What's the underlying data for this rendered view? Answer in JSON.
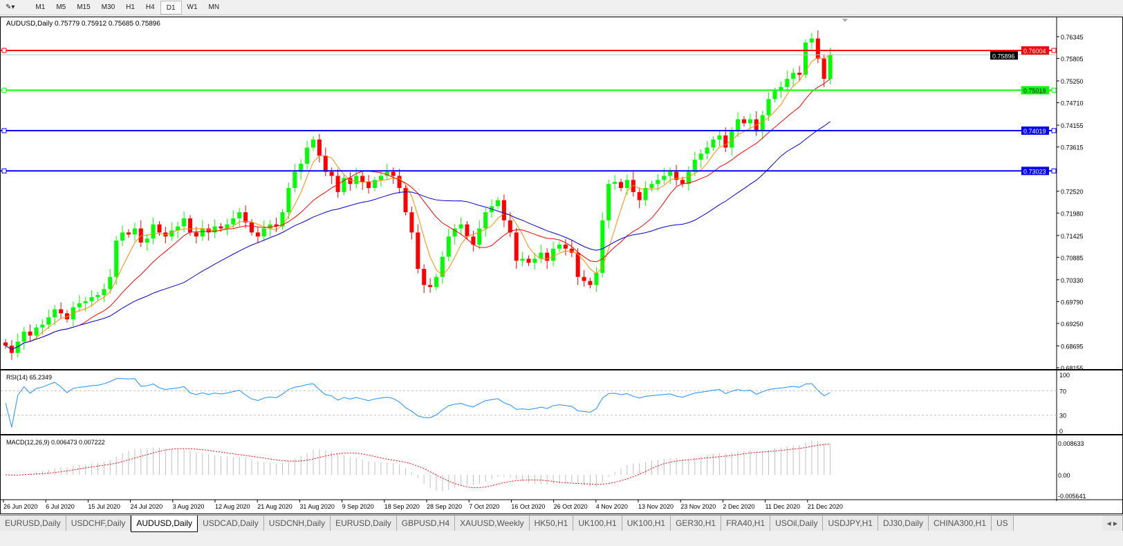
{
  "toolbar": {
    "timeframes": [
      "M1",
      "M5",
      "M15",
      "M30",
      "H1",
      "H4",
      "D1",
      "W1",
      "MN"
    ],
    "active": "D1"
  },
  "chart": {
    "title": "AUDUSD,Daily",
    "ohlc_text": "0.75779 0.75912 0.75685 0.75896",
    "rsi_label": "RSI(14) 65.2349",
    "macd_label": "MACD(12,26,9) 0.006473 0.007222",
    "price_ticks": [
      "0.76345",
      "0.75805",
      "0.75250",
      "0.74710",
      "0.74155",
      "0.73615",
      "0.72520",
      "0.71980",
      "0.71425",
      "0.70885",
      "0.70330",
      "0.69790",
      "0.69250",
      "0.68695",
      "0.68155"
    ],
    "rsi_ticks": [
      "100",
      "70",
      "30",
      "0"
    ],
    "macd_ticks": [
      "0.008633",
      "0.00",
      "-0.005641"
    ],
    "date_labels": [
      "26 Jun 2020",
      "6 Jul 2020",
      "15 Jul 2020",
      "24 Jul 2020",
      "3 Aug 2020",
      "12 Aug 2020",
      "21 Aug 2020",
      "31 Aug 2020",
      "9 Sep 2020",
      "18 Sep 2020",
      "28 Sep 2020",
      "7 Oct 2020",
      "16 Oct 2020",
      "26 Oct 2020",
      "4 Nov 2020",
      "13 Nov 2020",
      "23 Nov 2020",
      "2 Dec 2020",
      "11 Dec 2020",
      "21 Dec 2020"
    ],
    "hlines": [
      {
        "price": "0.76004",
        "color": "#ff0000"
      },
      {
        "price": "0.75019",
        "color": "#00ff00"
      },
      {
        "price": "0.74019",
        "color": "#0000ff"
      },
      {
        "price": "0.73023",
        "color": "#0000ff"
      }
    ],
    "bid": "0.75896",
    "colors": {
      "bull": "#00ff00",
      "bear": "#ff0000",
      "ma_fast": "#ff8c00",
      "ma_mid": "#ff0000",
      "ma_slow": "#0000cd",
      "rsi": "#1e90ff",
      "macd_signal": "#ff0000",
      "macd_hist": "#c0c0c0"
    }
  },
  "chart_data": {
    "type": "candlestick",
    "symbol": "AUDUSD",
    "timeframe": "Daily",
    "ylim": [
      0.68155,
      0.76345
    ],
    "close": [
      0.687,
      0.6852,
      0.688,
      0.6905,
      0.6895,
      0.6915,
      0.6922,
      0.694,
      0.696,
      0.695,
      0.6935,
      0.6965,
      0.6975,
      0.698,
      0.699,
      0.6995,
      0.701,
      0.704,
      0.713,
      0.715,
      0.7145,
      0.716,
      0.7125,
      0.7135,
      0.717,
      0.715,
      0.714,
      0.7155,
      0.7165,
      0.7185,
      0.715,
      0.714,
      0.716,
      0.715,
      0.7165,
      0.716,
      0.717,
      0.7185,
      0.72,
      0.7175,
      0.715,
      0.714,
      0.716,
      0.717,
      0.7165,
      0.72,
      0.726,
      0.73,
      0.732,
      0.736,
      0.738,
      0.734,
      0.73,
      0.729,
      0.725,
      0.7285,
      0.727,
      0.729,
      0.7275,
      0.726,
      0.728,
      0.729,
      0.73,
      0.729,
      0.726,
      0.72,
      0.715,
      0.706,
      0.702,
      0.7015,
      0.704,
      0.709,
      0.714,
      0.716,
      0.717,
      0.714,
      0.712,
      0.716,
      0.72,
      0.7215,
      0.723,
      0.718,
      0.715,
      0.708,
      0.7085,
      0.7075,
      0.7085,
      0.71,
      0.708,
      0.711,
      0.712,
      0.711,
      0.71,
      0.704,
      0.703,
      0.702,
      0.705,
      0.718,
      0.727,
      0.7275,
      0.726,
      0.728,
      0.725,
      0.723,
      0.726,
      0.727,
      0.728,
      0.729,
      0.73,
      0.728,
      0.727,
      0.73,
      0.733,
      0.7345,
      0.736,
      0.738,
      0.739,
      0.736,
      0.74,
      0.743,
      0.742,
      0.743,
      0.74,
      0.744,
      0.748,
      0.75,
      0.751,
      0.753,
      0.7545,
      0.754,
      0.762,
      0.763,
      0.758,
      0.753,
      0.759
    ]
  },
  "tabs": [
    "EURUSD,Daily",
    "USDCHF,Daily",
    "AUDUSD,Daily",
    "USDCAD,Daily",
    "USDCNH,Daily",
    "EURUSD,Daily",
    "GBPUSD,H4",
    "XAUUSD,Weekly",
    "HK50,H1",
    "UK100,H1",
    "UK100,H1",
    "GER30,H1",
    "FRA40,H1",
    "USOil,Daily",
    "USDJPY,H1",
    "DJ30,Daily",
    "CHINA300,H1",
    "US"
  ],
  "active_tab": "AUDUSD,Daily"
}
